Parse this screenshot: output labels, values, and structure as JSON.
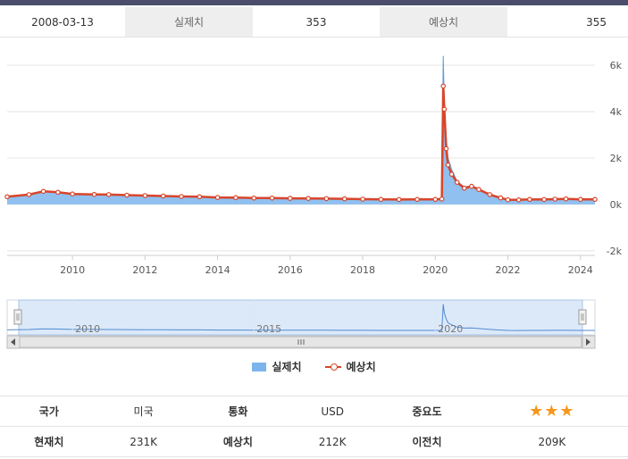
{
  "header": {
    "date": "2008-03-13",
    "actual_label": "실제치",
    "actual_value": "353",
    "forecast_label": "예상치",
    "forecast_value": "355"
  },
  "chart_data": {
    "type": "area",
    "x_ticks": [
      "2010",
      "2012",
      "2014",
      "2016",
      "2018",
      "2020",
      "2022",
      "2024"
    ],
    "y_ticks": [
      "6k",
      "4k",
      "2k",
      "0k",
      "-2k"
    ],
    "ylim": [
      -2200,
      6500
    ],
    "xlim": [
      2008.2,
      2024.4
    ],
    "navigator_labels": [
      "2010",
      "2015",
      "2020"
    ],
    "series": [
      {
        "name": "실제치",
        "color": "#7cb5ec",
        "points": [
          [
            2008.2,
            330
          ],
          [
            2008.8,
            420
          ],
          [
            2009.2,
            560
          ],
          [
            2009.6,
            520
          ],
          [
            2010.0,
            450
          ],
          [
            2010.6,
            430
          ],
          [
            2011.0,
            420
          ],
          [
            2011.5,
            400
          ],
          [
            2012.0,
            380
          ],
          [
            2012.5,
            360
          ],
          [
            2013.0,
            340
          ],
          [
            2013.5,
            330
          ],
          [
            2014.0,
            300
          ],
          [
            2014.5,
            290
          ],
          [
            2015.0,
            270
          ],
          [
            2015.5,
            270
          ],
          [
            2016.0,
            260
          ],
          [
            2016.5,
            255
          ],
          [
            2017.0,
            250
          ],
          [
            2017.5,
            240
          ],
          [
            2018.0,
            225
          ],
          [
            2018.5,
            215
          ],
          [
            2019.0,
            210
          ],
          [
            2019.5,
            215
          ],
          [
            2020.0,
            215
          ],
          [
            2020.18,
            230
          ],
          [
            2020.22,
            6400
          ],
          [
            2020.25,
            4300
          ],
          [
            2020.3,
            2900
          ],
          [
            2020.35,
            2000
          ],
          [
            2020.45,
            1500
          ],
          [
            2020.6,
            1000
          ],
          [
            2020.8,
            750
          ],
          [
            2021.0,
            800
          ],
          [
            2021.2,
            650
          ],
          [
            2021.5,
            430
          ],
          [
            2021.8,
            290
          ],
          [
            2022.0,
            200
          ],
          [
            2022.3,
            195
          ],
          [
            2022.6,
            220
          ],
          [
            2023.0,
            210
          ],
          [
            2023.3,
            230
          ],
          [
            2023.6,
            240
          ],
          [
            2024.0,
            215
          ],
          [
            2024.4,
            210
          ]
        ]
      },
      {
        "name": "예상치",
        "color": "#d8452b",
        "points": [
          [
            2008.2,
            330
          ],
          [
            2008.8,
            420
          ],
          [
            2009.2,
            560
          ],
          [
            2009.6,
            520
          ],
          [
            2010.0,
            450
          ],
          [
            2010.6,
            430
          ],
          [
            2011.0,
            420
          ],
          [
            2011.5,
            400
          ],
          [
            2012.0,
            380
          ],
          [
            2012.5,
            360
          ],
          [
            2013.0,
            340
          ],
          [
            2013.5,
            330
          ],
          [
            2014.0,
            300
          ],
          [
            2014.5,
            290
          ],
          [
            2015.0,
            270
          ],
          [
            2015.5,
            270
          ],
          [
            2016.0,
            260
          ],
          [
            2016.5,
            255
          ],
          [
            2017.0,
            250
          ],
          [
            2017.5,
            240
          ],
          [
            2018.0,
            225
          ],
          [
            2018.5,
            215
          ],
          [
            2019.0,
            210
          ],
          [
            2019.5,
            215
          ],
          [
            2020.0,
            215
          ],
          [
            2020.18,
            230
          ],
          [
            2020.22,
            5100
          ],
          [
            2020.25,
            4100
          ],
          [
            2020.3,
            2400
          ],
          [
            2020.35,
            1700
          ],
          [
            2020.45,
            1300
          ],
          [
            2020.6,
            950
          ],
          [
            2020.8,
            700
          ],
          [
            2021.0,
            780
          ],
          [
            2021.2,
            640
          ],
          [
            2021.5,
            420
          ],
          [
            2021.8,
            280
          ],
          [
            2022.0,
            200
          ],
          [
            2022.3,
            195
          ],
          [
            2022.6,
            215
          ],
          [
            2023.0,
            210
          ],
          [
            2023.3,
            225
          ],
          [
            2023.6,
            235
          ],
          [
            2024.0,
            212
          ],
          [
            2024.4,
            212
          ]
        ]
      }
    ]
  },
  "legend": {
    "actual": "실제치",
    "forecast": "예상치"
  },
  "details": {
    "country_label": "국가",
    "country_value": "미국",
    "currency_label": "통화",
    "currency_value": "USD",
    "importance_label": "중요도",
    "importance_stars": "★★★",
    "importance_level": 3,
    "current_label": "현재치",
    "current_value": "231K",
    "forecast_label": "예상치",
    "forecast_value": "212K",
    "previous_label": "이전치",
    "previous_value": "209K"
  }
}
